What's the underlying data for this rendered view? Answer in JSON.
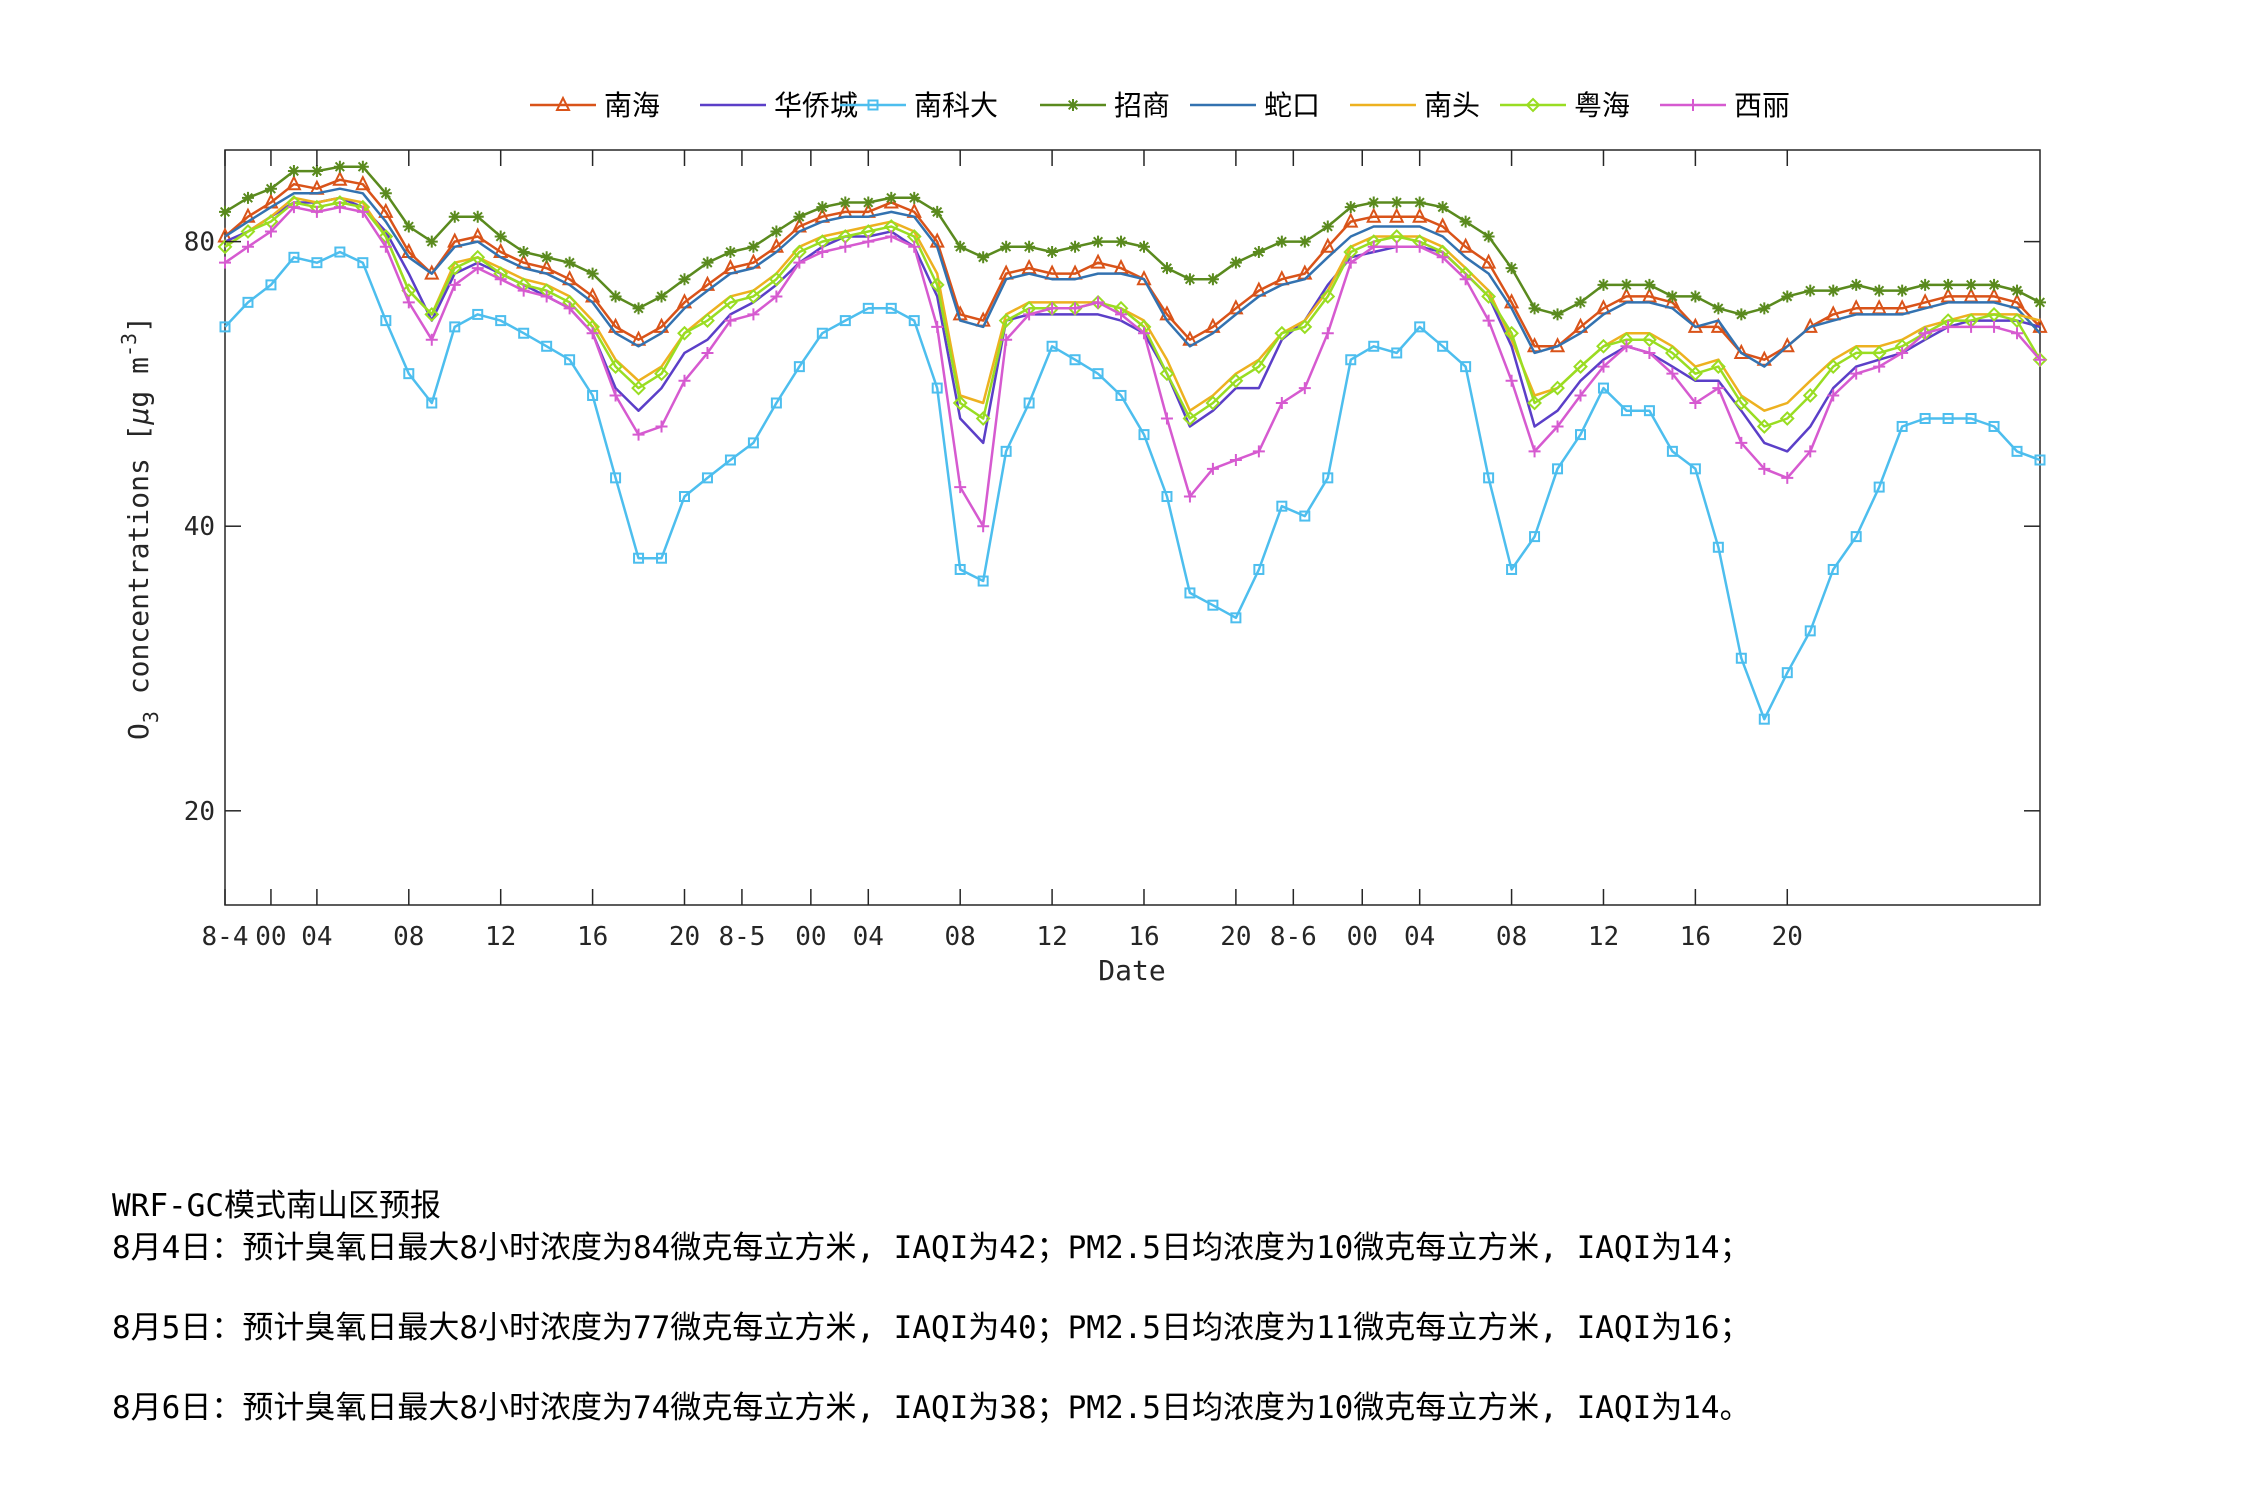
{
  "chart_data": {
    "type": "line",
    "xlabel": "Date",
    "ylabel": "O3 concentrations [μg m-3]",
    "ylabel_parts": {
      "o": "O",
      "sub": "3",
      "rest": " concentrations [",
      "mu": "μ",
      "unit": "g m",
      "sup": "-3",
      "close": "]"
    },
    "y_scale": "log",
    "ylim": [
      15.9,
      100
    ],
    "yticks": [
      20,
      40,
      80
    ],
    "xlim": [
      0,
      79
    ],
    "xticks": [
      {
        "x": 0,
        "label": "8-4"
      },
      {
        "x": 2,
        "label": "00"
      },
      {
        "x": 4,
        "label": "04"
      },
      {
        "x": 8,
        "label": "08"
      },
      {
        "x": 12,
        "label": "12"
      },
      {
        "x": 16,
        "label": "16"
      },
      {
        "x": 20,
        "label": "20"
      },
      {
        "x": 22.5,
        "label": "8-5"
      },
      {
        "x": 25.5,
        "label": "00"
      },
      {
        "x": 28,
        "label": "04"
      },
      {
        "x": 32,
        "label": "08"
      },
      {
        "x": 36,
        "label": "12"
      },
      {
        "x": 40,
        "label": "16"
      },
      {
        "x": 44,
        "label": "20"
      },
      {
        "x": 46.5,
        "label": "8-6"
      },
      {
        "x": 49.5,
        "label": "00"
      },
      {
        "x": 52,
        "label": "04"
      },
      {
        "x": 56,
        "label": "08"
      },
      {
        "x": 60,
        "label": "12"
      },
      {
        "x": 64,
        "label": "16"
      },
      {
        "x": 68,
        "label": "20"
      }
    ],
    "legend_position": "top",
    "grid": false,
    "series": [
      {
        "name": "南海",
        "color": "#D95319",
        "marker": "triangle",
        "values": [
          81,
          85,
          88,
          92,
          91,
          93,
          92,
          86,
          78,
          74,
          80,
          81,
          78,
          76,
          75,
          73,
          70,
          65,
          63,
          65,
          69,
          72,
          75,
          76,
          79,
          83,
          85,
          86,
          86,
          88,
          86,
          80,
          67,
          66,
          74,
          75,
          74,
          74,
          76,
          75,
          73,
          67,
          63,
          65,
          68,
          71,
          73,
          74,
          79,
          84,
          85,
          85,
          85,
          83,
          79,
          76,
          69,
          62,
          62,
          65,
          68,
          70,
          70,
          69,
          65,
          65,
          61,
          60,
          62,
          65,
          67,
          68,
          68,
          68,
          69,
          70,
          70,
          70,
          69,
          65
        ]
      },
      {
        "name": "华侨城",
        "color": "#5b3fc8",
        "marker": "none",
        "values": [
          80,
          82,
          85,
          88,
          88,
          89,
          87,
          82,
          74,
          66,
          74,
          76,
          74,
          72,
          70,
          68,
          64,
          56,
          53,
          56,
          61,
          63,
          67,
          69,
          72,
          76,
          79,
          81,
          81,
          82,
          79,
          70,
          52,
          49,
          66,
          67,
          67,
          67,
          67,
          66,
          64,
          58,
          51,
          53,
          56,
          56,
          63,
          66,
          72,
          77,
          78,
          79,
          79,
          78,
          74,
          70,
          62,
          51,
          53,
          57,
          60,
          62,
          61,
          59,
          57,
          57,
          53,
          49,
          48,
          51,
          56,
          59,
          60,
          61,
          63,
          65,
          66,
          66,
          66,
          65
        ]
      },
      {
        "name": "南科大",
        "color": "#4DBEEE",
        "marker": "square",
        "values": [
          65,
          69,
          72,
          77,
          76,
          78,
          76,
          66,
          58,
          54,
          65,
          67,
          66,
          64,
          62,
          60,
          55,
          45,
          37,
          37,
          43,
          45,
          47,
          49,
          54,
          59,
          64,
          66,
          68,
          68,
          66,
          56,
          36,
          35,
          48,
          54,
          62,
          60,
          58,
          55,
          50,
          43,
          34,
          33,
          32,
          36,
          42,
          41,
          45,
          60,
          62,
          61,
          65,
          62,
          59,
          45,
          36,
          39,
          46,
          50,
          56,
          53,
          53,
          48,
          46,
          38,
          29,
          25,
          28,
          31,
          36,
          39,
          44,
          51,
          52,
          52,
          52,
          51,
          48,
          47
        ]
      },
      {
        "name": "招商",
        "color": "#5a8a1e",
        "marker": "asterisk",
        "values": [
          86,
          89,
          91,
          95,
          95,
          96,
          96,
          90,
          83,
          80,
          85,
          85,
          81,
          78,
          77,
          76,
          74,
          70,
          68,
          70,
          73,
          76,
          78,
          79,
          82,
          85,
          87,
          88,
          88,
          89,
          89,
          86,
          79,
          77,
          79,
          79,
          78,
          79,
          80,
          80,
          79,
          75,
          73,
          73,
          76,
          78,
          80,
          80,
          83,
          87,
          88,
          88,
          88,
          87,
          84,
          81,
          75,
          68,
          67,
          69,
          72,
          72,
          72,
          70,
          70,
          68,
          67,
          68,
          70,
          71,
          71,
          72,
          71,
          71,
          72,
          72,
          72,
          72,
          71,
          69
        ]
      },
      {
        "name": "蛇口",
        "color": "#3372b0",
        "marker": "none",
        "values": [
          81,
          84,
          87,
          90,
          90,
          91,
          90,
          84,
          77,
          74,
          79,
          80,
          77,
          75,
          74,
          72,
          69,
          64,
          62,
          64,
          68,
          71,
          74,
          75,
          78,
          82,
          84,
          85,
          85,
          86,
          85,
          79,
          66,
          65,
          73,
          74,
          73,
          73,
          74,
          74,
          73,
          66,
          62,
          64,
          67,
          70,
          72,
          73,
          77,
          81,
          83,
          83,
          83,
          81,
          77,
          74,
          68,
          61,
          62,
          64,
          67,
          69,
          69,
          68,
          65,
          66,
          61,
          59,
          62,
          65,
          66,
          67,
          67,
          67,
          68,
          69,
          69,
          69,
          68,
          64
        ]
      },
      {
        "name": "南头",
        "color": "#EDB120",
        "marker": "none",
        "values": [
          79,
          82,
          85,
          89,
          88,
          89,
          88,
          81,
          71,
          67,
          76,
          77,
          75,
          73,
          72,
          70,
          66,
          60,
          57,
          59,
          64,
          67,
          70,
          71,
          74,
          79,
          81,
          82,
          83,
          84,
          82,
          74,
          55,
          54,
          67,
          69,
          69,
          69,
          69,
          68,
          66,
          60,
          53,
          55,
          58,
          60,
          64,
          66,
          71,
          79,
          81,
          81,
          81,
          79,
          75,
          71,
          63,
          55,
          56,
          59,
          62,
          64,
          64,
          62,
          59,
          60,
          55,
          53,
          54,
          57,
          60,
          62,
          62,
          63,
          65,
          66,
          67,
          67,
          67,
          66
        ]
      },
      {
        "name": "粤海",
        "color": "#99dd22",
        "marker": "diamond",
        "values": [
          79,
          82,
          84,
          88,
          87,
          88,
          87,
          81,
          71,
          67,
          75,
          77,
          74,
          72,
          71,
          69,
          65,
          59,
          56,
          58,
          64,
          66,
          69,
          70,
          73,
          78,
          80,
          81,
          82,
          83,
          81,
          72,
          54,
          52,
          66,
          68,
          68,
          68,
          69,
          68,
          65,
          58,
          52,
          54,
          57,
          59,
          64,
          65,
          70,
          78,
          80,
          81,
          80,
          78,
          74,
          70,
          64,
          54,
          56,
          59,
          62,
          63,
          63,
          61,
          58,
          59,
          54,
          51,
          52,
          55,
          59,
          61,
          61,
          62,
          64,
          66,
          66,
          67,
          66,
          60
        ]
      },
      {
        "name": "西丽",
        "color": "#d65ad0",
        "marker": "plus",
        "values": [
          76,
          79,
          82,
          87,
          86,
          87,
          86,
          79,
          69,
          63,
          72,
          75,
          73,
          71,
          70,
          68,
          64,
          55,
          50,
          51,
          57,
          61,
          66,
          67,
          70,
          76,
          78,
          79,
          80,
          81,
          79,
          65,
          44,
          40,
          63,
          67,
          68,
          68,
          69,
          67,
          64,
          52,
          43,
          46,
          47,
          48,
          54,
          56,
          64,
          76,
          79,
          79,
          79,
          77,
          73,
          66,
          57,
          48,
          51,
          55,
          59,
          62,
          61,
          58,
          54,
          56,
          49,
          46,
          45,
          48,
          55,
          58,
          59,
          61,
          64,
          65,
          65,
          65,
          64,
          60
        ]
      }
    ]
  },
  "forecast": {
    "title": "WRF-GC模式南山区预报",
    "lines": [
      "8月4日：预计臭氧日最大8小时浓度为84微克每立方米, IAQI为42；PM2.5日均浓度为10微克每立方米, IAQI为14；",
      "8月5日：预计臭氧日最大8小时浓度为77微克每立方米, IAQI为40；PM2.5日均浓度为11微克每立方米, IAQI为16；",
      "8月6日：预计臭氧日最大8小时浓度为74微克每立方米, IAQI为38；PM2.5日均浓度为10微克每立方米, IAQI为14。"
    ]
  }
}
